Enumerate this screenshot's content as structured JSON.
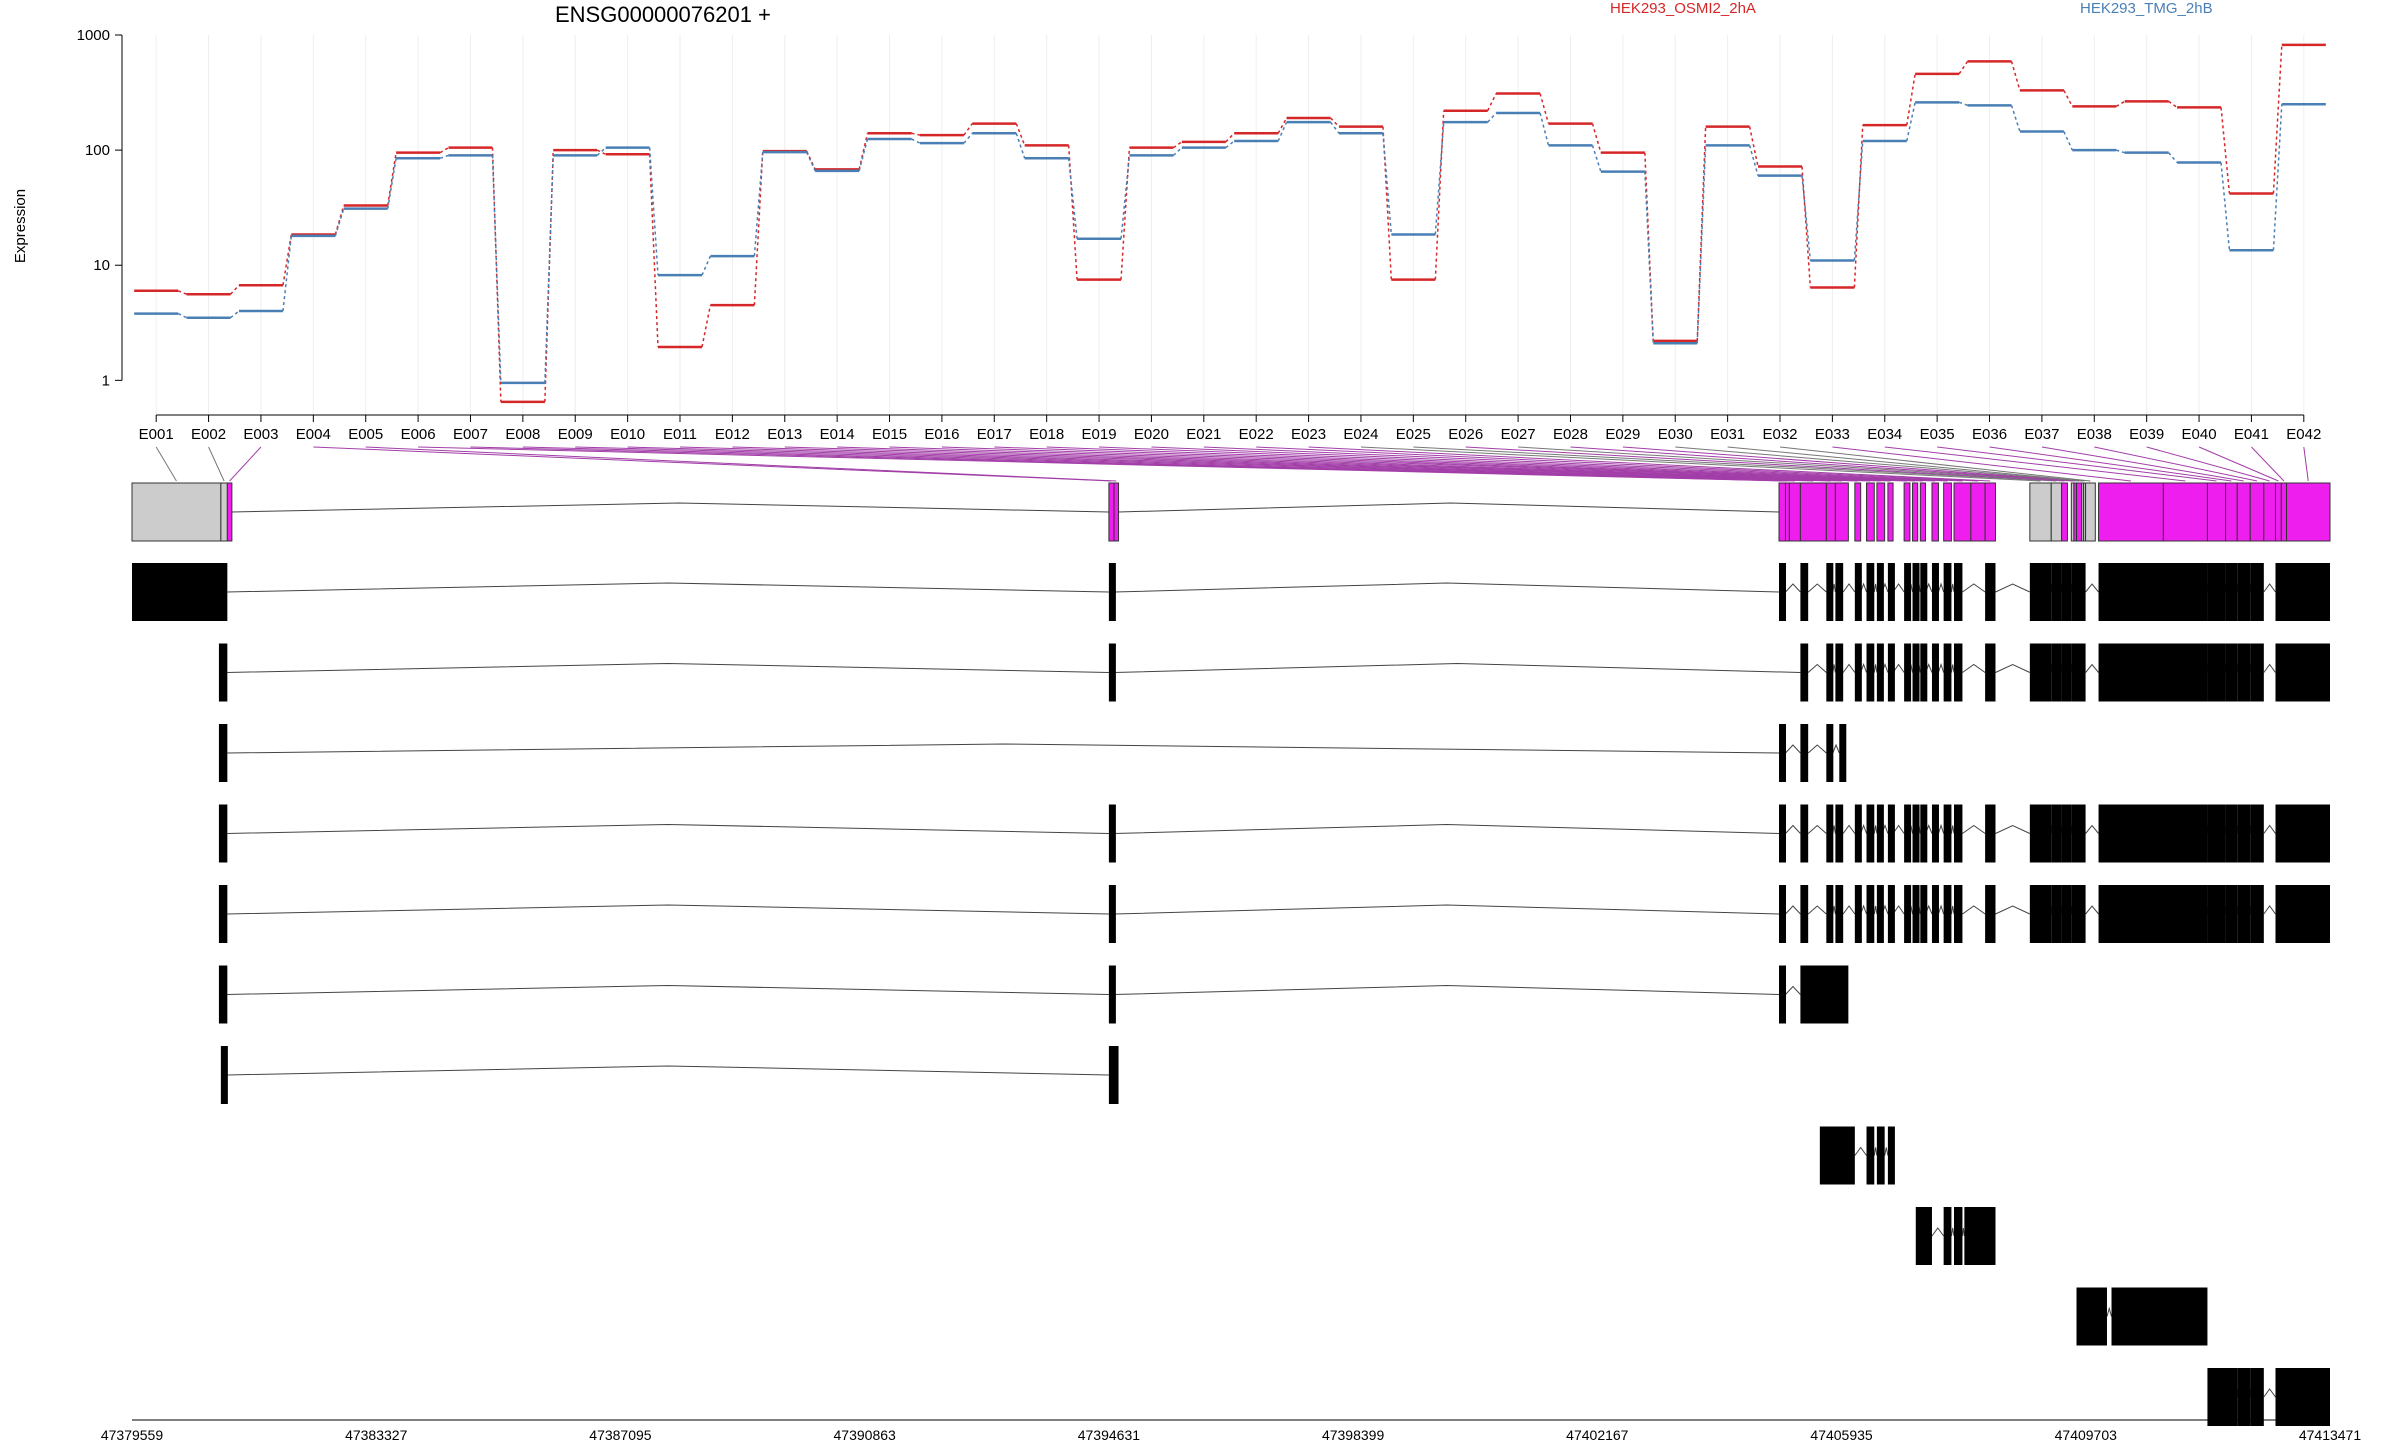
{
  "chart_data": {
    "type": "line",
    "title": "ENSG00000076201 +",
    "ylabel": "Expression",
    "yscale": "log",
    "ylim": [
      0.5,
      1000
    ],
    "yticks": [
      "1",
      "10",
      "100",
      "1000"
    ],
    "ytick_values": [
      1,
      10,
      100,
      1000
    ],
    "categories": [
      "E001",
      "E002",
      "E003",
      "E004",
      "E005",
      "E006",
      "E007",
      "E008",
      "E009",
      "E010",
      "E011",
      "E012",
      "E013",
      "E014",
      "E015",
      "E016",
      "E017",
      "E018",
      "E019",
      "E020",
      "E021",
      "E022",
      "E023",
      "E024",
      "E025",
      "E026",
      "E027",
      "E028",
      "E029",
      "E030",
      "E031",
      "E032",
      "E033",
      "E034",
      "E035",
      "E036",
      "E037",
      "E038",
      "E039",
      "E040",
      "E041",
      "E042"
    ],
    "series": [
      {
        "name": "HEK293_OSMI2_2hA",
        "color": "#d62728",
        "values": [
          6.0,
          5.6,
          6.7,
          18.5,
          33,
          95,
          105,
          0.65,
          100,
          92,
          1.95,
          4.5,
          98,
          68,
          140,
          135,
          170,
          110,
          7.5,
          105,
          118,
          140,
          190,
          160,
          7.5,
          220,
          310,
          170,
          95,
          2.2,
          160,
          72,
          6.4,
          165,
          460,
          590,
          330,
          240,
          265,
          235,
          42,
          820
        ]
      },
      {
        "name": "HEK293_TMG_2hB",
        "color": "#4a7fb5",
        "values": [
          3.8,
          3.5,
          4.0,
          18,
          31,
          85,
          90,
          0.95,
          90,
          105,
          8.2,
          12,
          96,
          66,
          125,
          115,
          140,
          85,
          17,
          90,
          105,
          120,
          175,
          140,
          18.5,
          175,
          210,
          110,
          65,
          2.1,
          110,
          60,
          11,
          120,
          260,
          245,
          145,
          100,
          95,
          78,
          13.5,
          250
        ]
      }
    ],
    "gene_model": {
      "coordinates": [
        "47379559",
        "47383327",
        "47387095",
        "47390863",
        "47394631",
        "47398399",
        "47402167",
        "47405935",
        "47409703",
        "47413471"
      ],
      "exon_colors": {
        "tested": "#ee1fee",
        "untested": "#cccccc",
        "transcript": "#000000",
        "link": "#a23ea8"
      }
    }
  }
}
